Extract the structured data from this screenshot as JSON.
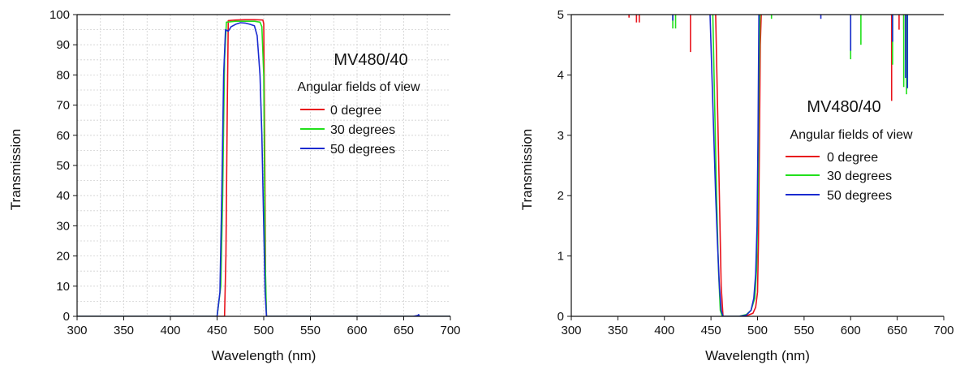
{
  "chart_data": [
    {
      "type": "line",
      "annotation_title": "MV480/40",
      "annotation_subtitle": "Angular fields of view",
      "xlabel": "Wavelength (nm)",
      "ylabel": "Transmission",
      "xlim": [
        300,
        700
      ],
      "ylim": [
        0,
        100
      ],
      "xticks": [
        300,
        350,
        400,
        450,
        500,
        550,
        600,
        650,
        700
      ],
      "yticks": [
        0,
        10,
        20,
        30,
        40,
        50,
        60,
        70,
        80,
        90,
        100
      ],
      "grid": true,
      "legend_position": "right",
      "series": [
        {
          "name": "0 degree",
          "color": "#e8141c",
          "x": [
            300,
            450,
            458,
            459.5,
            461,
            462,
            470,
            480,
            490,
            499,
            500,
            501,
            502,
            503,
            700
          ],
          "y": [
            0,
            0,
            0,
            20,
            70,
            98,
            98.2,
            98.3,
            98.3,
            98.2,
            97,
            60,
            10,
            0,
            0
          ]
        },
        {
          "name": "30 degrees",
          "color": "#22e01c",
          "x": [
            300,
            450,
            454,
            456,
            458,
            460,
            470,
            480,
            490,
            496,
            498,
            500,
            501.5,
            503,
            700
          ],
          "y": [
            0,
            0,
            10,
            40,
            85,
            97.5,
            97.8,
            97.8,
            97.8,
            97.5,
            96,
            80,
            20,
            0,
            0
          ]
        },
        {
          "name": "50 degrees",
          "color": "#1a2ad0",
          "x": [
            300,
            450,
            453,
            455,
            457,
            459,
            462,
            465,
            470,
            475,
            480,
            485,
            490,
            493,
            496,
            498,
            500,
            501.5,
            503,
            660,
            665,
            666,
            667,
            700
          ],
          "y": [
            0,
            0,
            8,
            40,
            80,
            95,
            94.5,
            96,
            96.8,
            97.3,
            97.2,
            96.8,
            96.3,
            93,
            80,
            60,
            30,
            8,
            0,
            0,
            0.3,
            0.6,
            0,
            0
          ]
        }
      ]
    },
    {
      "type": "line",
      "annotation_title": "MV480/40",
      "annotation_subtitle": "Angular fields of view",
      "xlabel": "Wavelength (nm)",
      "ylabel": "Transmission",
      "xlim": [
        300,
        700
      ],
      "ylim": [
        0,
        5
      ],
      "xticks": [
        300,
        350,
        400,
        450,
        500,
        550,
        600,
        650,
        700
      ],
      "yticks": [
        0,
        1,
        2,
        3,
        4,
        5
      ],
      "grid": false,
      "legend_position": "right",
      "series": [
        {
          "name": "0 degree",
          "color": "#e8141c",
          "x": [
            455,
            457,
            459,
            461,
            463,
            470,
            480,
            490,
            495,
            498,
            500,
            501,
            502,
            503,
            504
          ],
          "y": [
            5,
            3.5,
            2,
            0.5,
            0,
            0,
            0,
            0.02,
            0.05,
            0.15,
            0.4,
            1.2,
            2.8,
            4.5,
            5
          ],
          "dips": [
            [
              362,
              4.95
            ],
            [
              370,
              4.87
            ],
            [
              373,
              4.87
            ],
            [
              428,
              4.38
            ],
            [
              644,
              3.57
            ],
            [
              652,
              4.75
            ],
            [
              657,
              4.75
            ],
            [
              659,
              4.25
            ]
          ]
        },
        {
          "name": "30 degrees",
          "color": "#22e01c",
          "x": [
            452,
            454,
            456,
            458,
            460,
            462,
            470,
            480,
            488,
            493,
            497,
            499,
            500.5,
            501.5,
            502.5
          ],
          "y": [
            5,
            3.5,
            2,
            0.8,
            0.1,
            0,
            0,
            0,
            0.03,
            0.1,
            0.3,
            0.8,
            2,
            3.8,
            5
          ],
          "dips": [
            [
              409,
              4.77
            ],
            [
              412,
              4.77
            ],
            [
              515,
              4.93
            ],
            [
              600,
              4.26
            ],
            [
              611,
              4.5
            ],
            [
              645,
              4.17
            ],
            [
              657,
              3.8
            ],
            [
              660,
              3.68
            ]
          ]
        },
        {
          "name": "50 degrees",
          "color": "#1a2ad0",
          "x": [
            449,
            451,
            453,
            455,
            457,
            459,
            461,
            463,
            470,
            480,
            488,
            493,
            496,
            498,
            499.5,
            500.5,
            501.5
          ],
          "y": [
            5,
            4,
            3,
            2,
            1.2,
            0.5,
            0.1,
            0,
            0,
            0,
            0.02,
            0.1,
            0.3,
            0.7,
            1.5,
            3,
            5
          ],
          "dips": [
            [
              409,
              4.9
            ],
            [
              568,
              4.93
            ],
            [
              600,
              4.4
            ],
            [
              645,
              4.55
            ],
            [
              659,
              3.95
            ],
            [
              661,
              3.78
            ]
          ]
        }
      ]
    }
  ]
}
